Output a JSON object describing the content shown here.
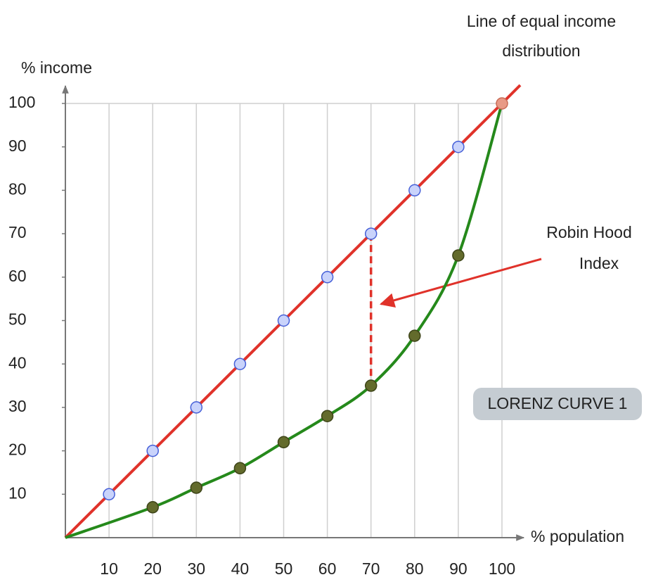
{
  "chart_data": {
    "type": "line",
    "xlabel": "% population",
    "ylabel": "% income",
    "xlim": [
      0,
      100
    ],
    "ylim": [
      0,
      100
    ],
    "xticks": [
      10,
      20,
      30,
      40,
      50,
      60,
      70,
      80,
      90,
      100
    ],
    "yticks": [
      10,
      20,
      30,
      40,
      50,
      60,
      70,
      80,
      90,
      100
    ],
    "grid": "x",
    "series": [
      {
        "color": "#e0322a",
        "marker_fill": "#c9d3fb",
        "marker_stroke": "#4660d8",
        "x": [
          0,
          10,
          20,
          30,
          40,
          50,
          60,
          70,
          80,
          90,
          100
        ],
        "values": [
          0,
          10,
          20,
          30,
          40,
          50,
          60,
          70,
          80,
          90,
          100
        ]
      },
      {
        "color": "#25891b",
        "marker_fill": "#636b2c",
        "marker_stroke": "#3d4418",
        "x": [
          0,
          20,
          30,
          40,
          50,
          60,
          70,
          80,
          90,
          100
        ],
        "values": [
          0,
          7,
          11.5,
          16,
          22,
          28,
          35,
          46.5,
          65,
          100
        ]
      }
    ],
    "annotations": [
      {
        "text": "Line of equal income distribution"
      },
      {
        "text": "Robin Hood Index",
        "x": 70
      },
      {
        "text": "LORENZ CURVE 1"
      }
    ]
  }
}
